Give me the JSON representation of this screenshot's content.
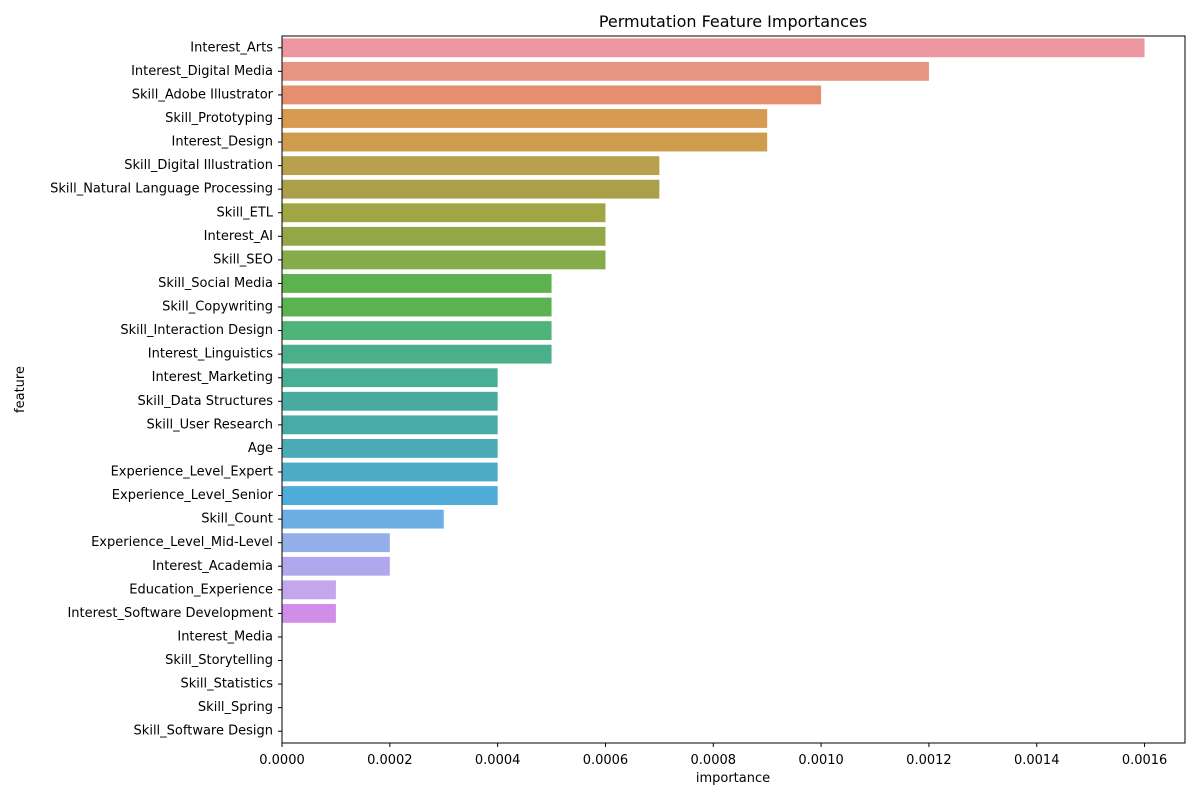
{
  "chart_data": {
    "type": "bar",
    "orientation": "horizontal",
    "title": "Permutation Feature Importances",
    "xlabel": "importance",
    "ylabel": "feature",
    "xlim": [
      0,
      0.001675
    ],
    "xticks": [
      0.0,
      0.0002,
      0.0004,
      0.0006,
      0.0008,
      0.001,
      0.0012,
      0.0014,
      0.0016
    ],
    "xtick_labels": [
      "0.0000",
      "0.0002",
      "0.0004",
      "0.0006",
      "0.0008",
      "0.0010",
      "0.0012",
      "0.0014",
      "0.0016"
    ],
    "grid": false,
    "categories": [
      "Interest_Arts",
      "Interest_Digital Media",
      "Skill_Adobe Illustrator",
      "Skill_Prototyping",
      "Interest_Design",
      "Skill_Digital Illustration",
      "Skill_Natural Language Processing",
      "Skill_ETL",
      "Interest_AI",
      "Skill_SEO",
      "Skill_Social Media",
      "Skill_Copywriting",
      "Skill_Interaction Design",
      "Interest_Linguistics",
      "Interest_Marketing",
      "Skill_Data Structures",
      "Skill_User Research",
      "Age",
      "Experience_Level_Expert",
      "Experience_Level_Senior",
      "Skill_Count",
      "Experience_Level_Mid-Level",
      "Interest_Academia",
      "Education_Experience",
      "Interest_Software Development",
      "Interest_Media",
      "Skill_Storytelling",
      "Skill_Statistics",
      "Skill_Spring",
      "Skill_Software Design"
    ],
    "values": [
      0.0016,
      0.0012,
      0.001,
      0.0009,
      0.0009,
      0.0007,
      0.0007,
      0.0006,
      0.0006,
      0.0006,
      0.0005,
      0.0005,
      0.0005,
      0.0005,
      0.0004,
      0.0004,
      0.0004,
      0.0004,
      0.0004,
      0.0004,
      0.0003,
      0.0002,
      0.0002,
      0.0001,
      0.0001,
      0.0,
      0.0,
      0.0,
      0.0,
      0.0
    ],
    "colors": [
      "#ec96a0",
      "#e89584",
      "#e68f6f",
      "#d79a50",
      "#cd9c4d",
      "#b8a04e",
      "#aba04a",
      "#a2a544",
      "#94a746",
      "#86ab4a",
      "#5cb24c",
      "#5ab350",
      "#4fb37a",
      "#4ab08a",
      "#49ae96",
      "#47ab9f",
      "#49aba7",
      "#4aabb5",
      "#4eabc8",
      "#4fabd8",
      "#6caee3",
      "#94aee9",
      "#b0a7ec",
      "#c3a6eb",
      "#d18ee8",
      "#e08fd9",
      "#e88fcb",
      "#eb90bd",
      "#ec91b0",
      "#ec93a6"
    ]
  }
}
